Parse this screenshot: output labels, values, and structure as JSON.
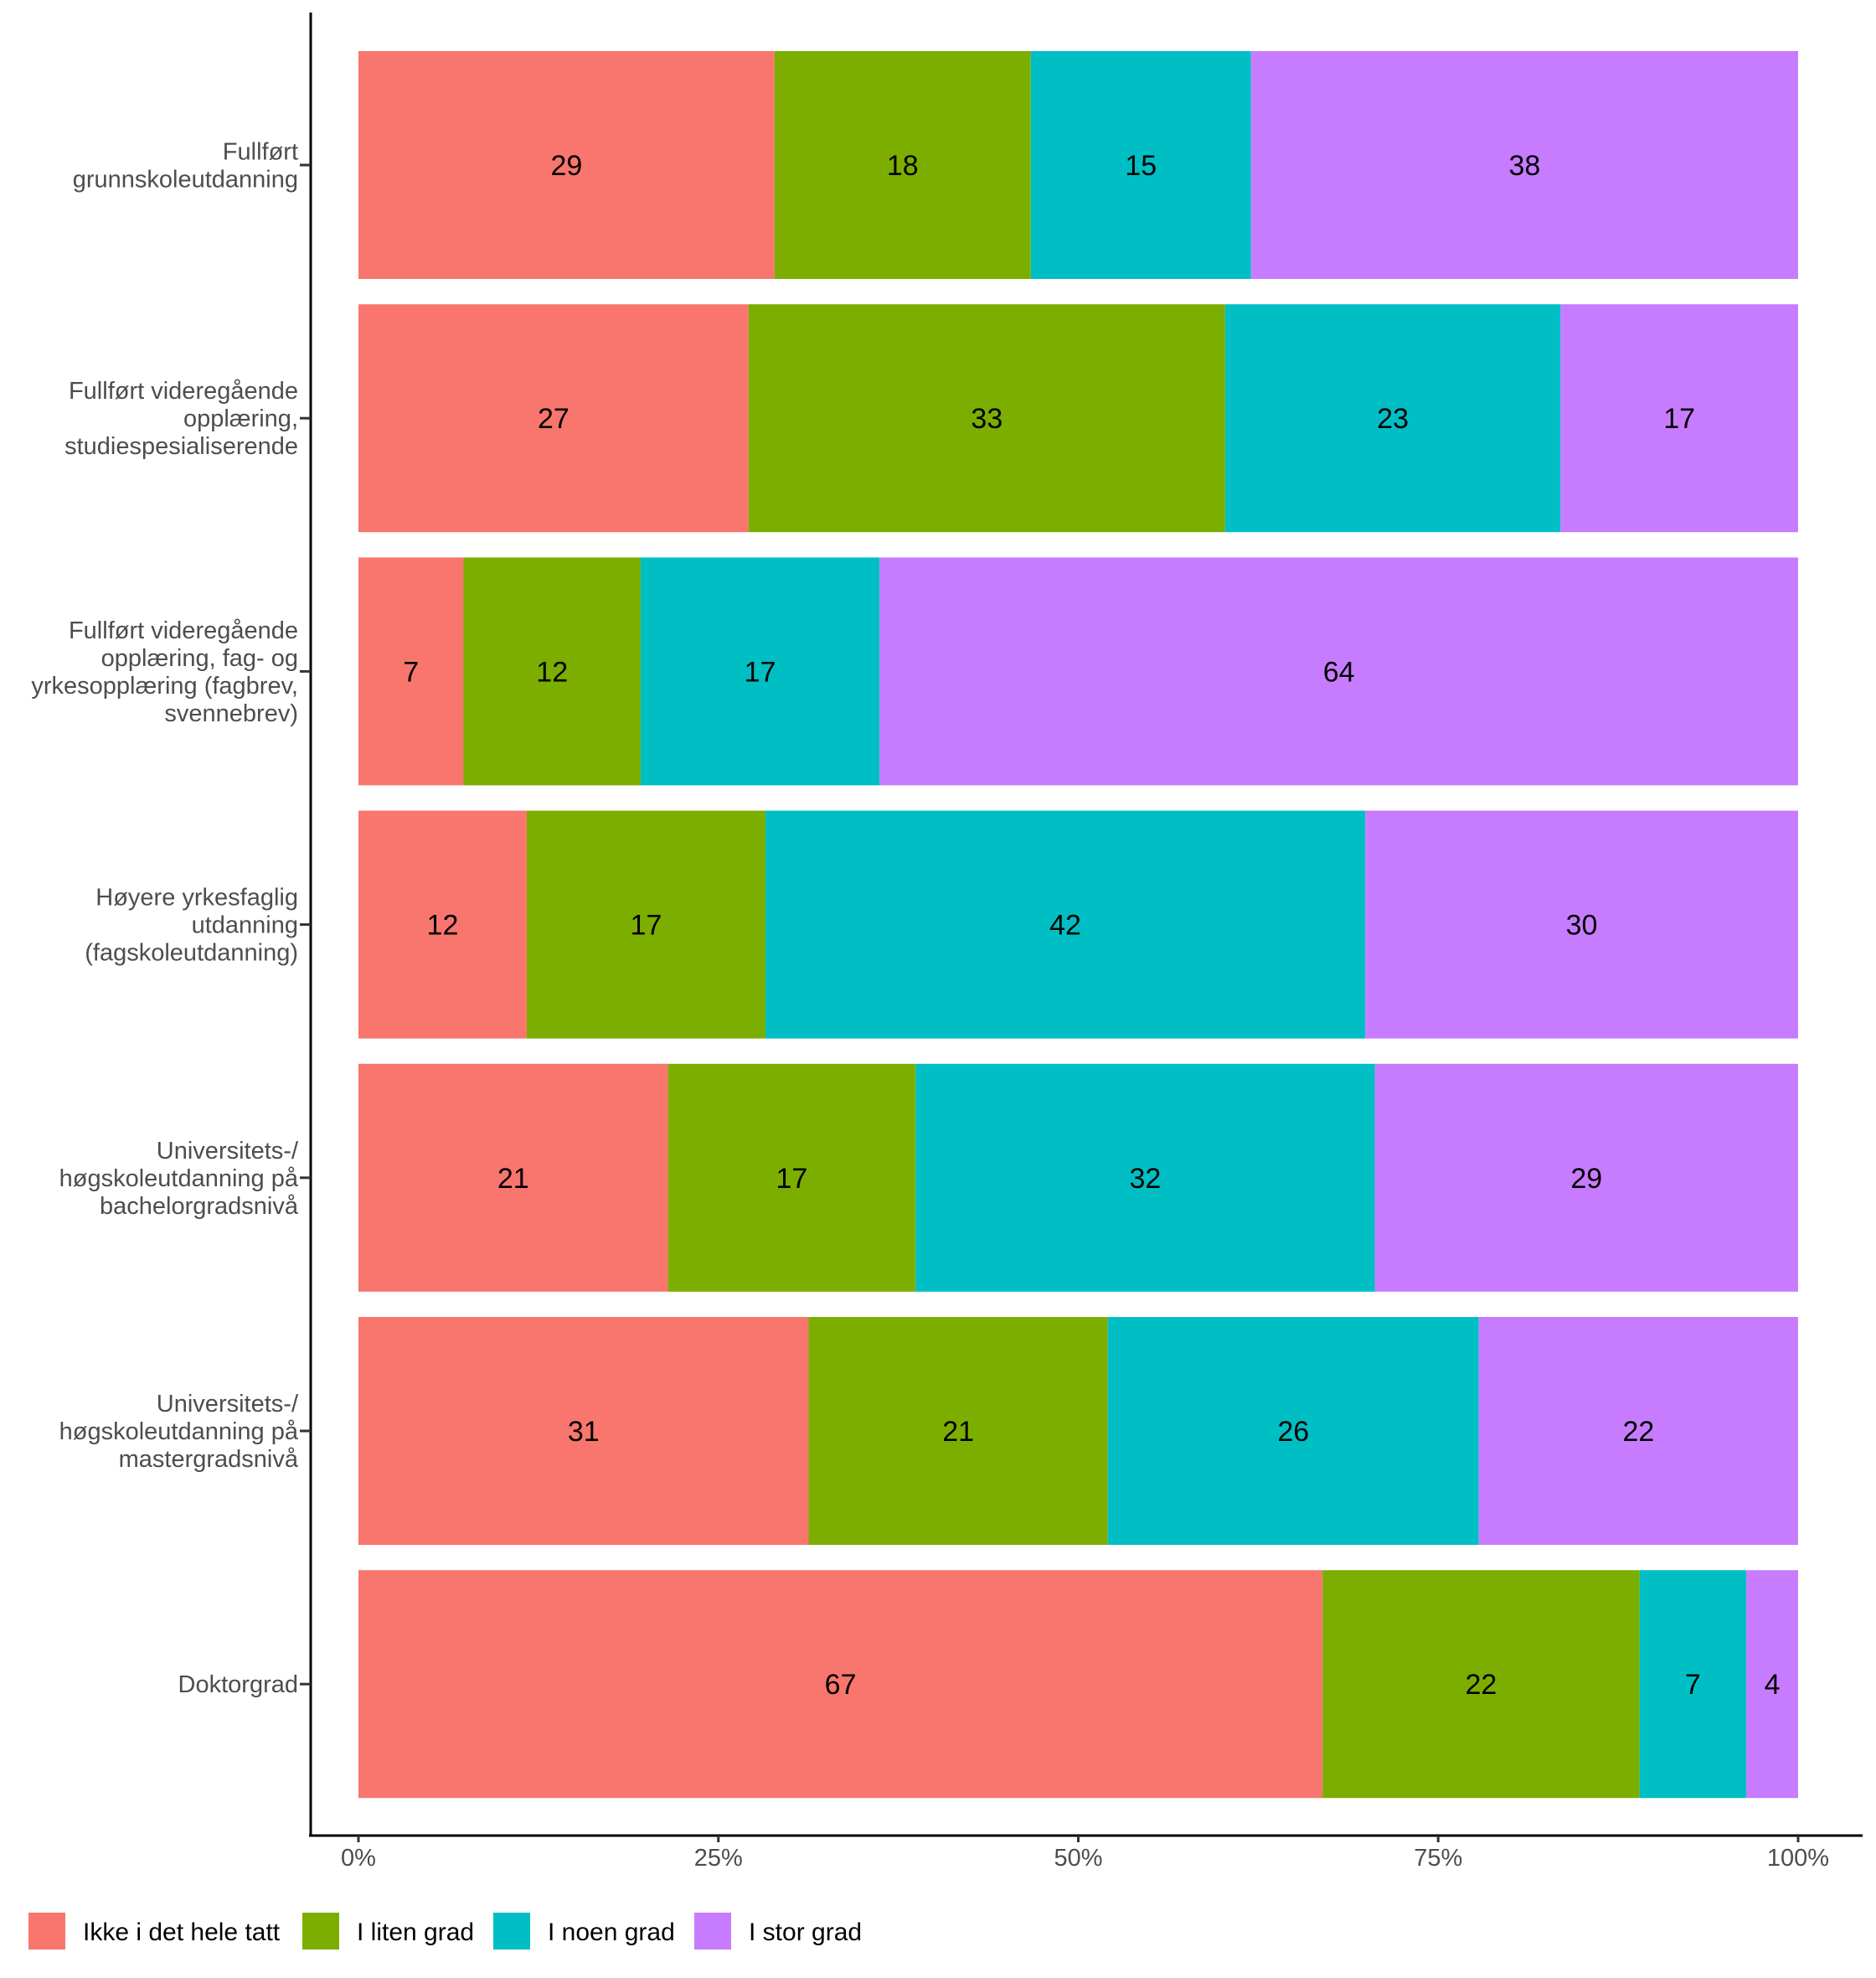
{
  "chart_data": {
    "type": "bar",
    "orientation": "horizontal",
    "stacked": "percent",
    "title": "",
    "xlabel": "",
    "ylabel": "",
    "xlim": [
      0,
      100
    ],
    "x_ticks": [
      "0%",
      "25%",
      "50%",
      "75%",
      "100%"
    ],
    "x_tick_values": [
      0,
      25,
      50,
      75,
      100
    ],
    "grid": false,
    "legend_position": "bottom-left",
    "categories": [
      [
        "Fullført",
        "grunnskoleutdanning"
      ],
      [
        "Fullført videregående",
        "opplæring,",
        "studiespesialiserende"
      ],
      [
        "Fullført videregående",
        "opplæring, fag- og",
        "yrkesopplæring (fagbrev,",
        "svennebrev)"
      ],
      [
        "Høyere yrkesfaglig",
        "utdanning",
        "(fagskoleutdanning)"
      ],
      [
        "Universitets-/",
        "høgskoleutdanning på",
        "bachelorgradsnivå"
      ],
      [
        "Universitets-/",
        "høgskoleutdanning på",
        "mastergradsnivå"
      ],
      [
        "Doktorgrad"
      ]
    ],
    "series": [
      {
        "name": "Ikke i det hele tatt",
        "color": "#F8766D",
        "values": [
          28.9,
          27.1,
          7.3,
          11.7,
          21.5,
          31.3,
          66.9
        ],
        "labels": [
          "29",
          "27",
          "7",
          "12",
          "21",
          "31",
          "67"
        ]
      },
      {
        "name": "I liten grad",
        "color": "#7CAE00",
        "values": [
          17.8,
          33.1,
          12.3,
          16.6,
          17.2,
          20.8,
          22.0
        ],
        "labels": [
          "18",
          "33",
          "12",
          "17",
          "17",
          "21",
          "22"
        ]
      },
      {
        "name": "I noen grad",
        "color": "#00BFC4",
        "values": [
          15.3,
          23.3,
          16.6,
          41.7,
          31.9,
          25.8,
          7.4
        ],
        "labels": [
          "15",
          "23",
          "17",
          "42",
          "32",
          "26",
          "7"
        ]
      },
      {
        "name": "I stor grad",
        "color": "#C77CFF",
        "values": [
          38.0,
          16.5,
          63.8,
          30.1,
          29.4,
          22.2,
          3.6
        ],
        "labels": [
          "38",
          "17",
          "64",
          "30",
          "29",
          "22",
          "4"
        ]
      }
    ]
  }
}
